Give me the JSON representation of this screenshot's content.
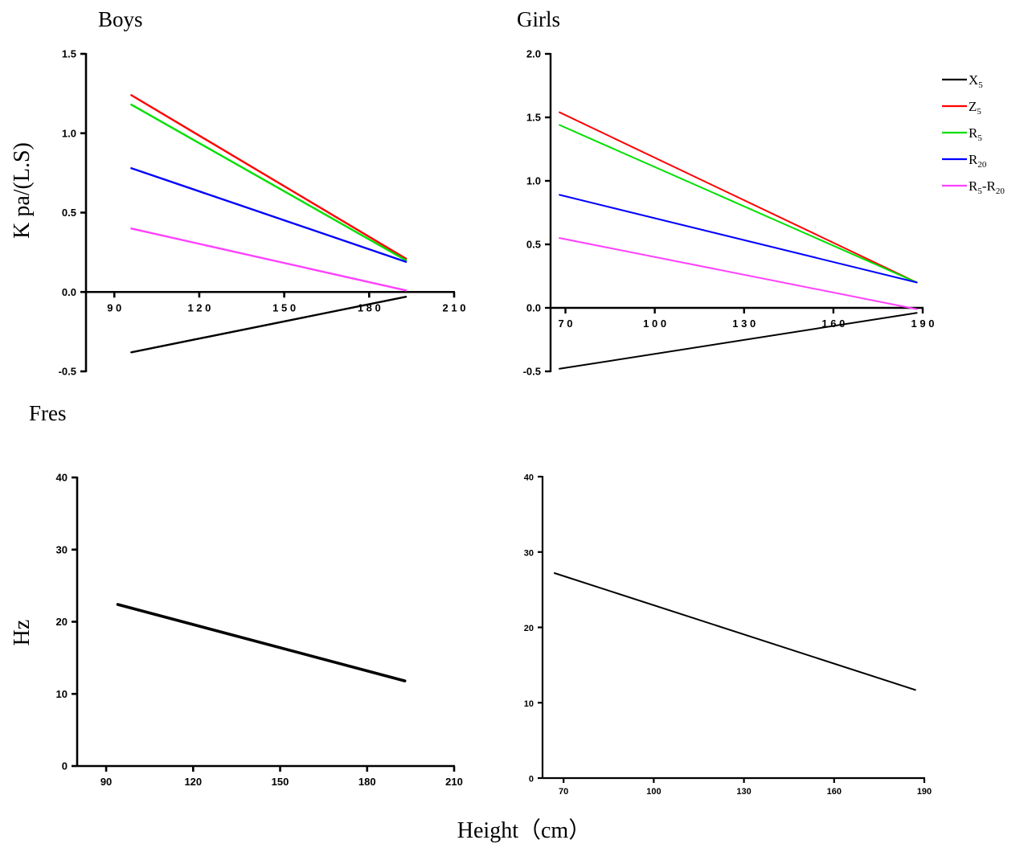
{
  "labels": {
    "boys": "Boys",
    "girls": "Girls",
    "fres": "Fres",
    "ylabel_top": "K pa/(L.S)",
    "ylabel_bottom": "Hz",
    "xlabel": "Height（cm）"
  },
  "legend": [
    {
      "base": "X",
      "sub": "5",
      "color": "#000000"
    },
    {
      "base": "Z",
      "sub": "5",
      "color": "#ff0000"
    },
    {
      "base": "R",
      "sub": "5",
      "color": "#00e000"
    },
    {
      "base": "R",
      "sub": "20",
      "color": "#0000ff"
    },
    {
      "base": "R",
      "sub": "5",
      "tail": "-R",
      "sub2": "20",
      "color": "#ff40ff"
    }
  ],
  "chart_data": [
    {
      "type": "line",
      "panel": "boys-impedance",
      "title": "Boys",
      "ylabel": "K pa/(L.S)",
      "xlim": [
        80,
        210
      ],
      "ylim": [
        -0.5,
        1.5
      ],
      "x_ticks": [
        90,
        120,
        150,
        180,
        210
      ],
      "x_tick_labels": [
        "9 0",
        "1 2 0",
        "1 5 0",
        "1 8 0",
        "2 1 0"
      ],
      "y_ticks": [
        -0.5,
        0.0,
        0.5,
        1.0,
        1.5
      ],
      "y_tick_labels": [
        "-0.5",
        "0.0",
        "0.5",
        "1.0",
        "1.5"
      ],
      "series": [
        {
          "name": "X5",
          "color": "#000000",
          "x": [
            96,
            193
          ],
          "y": [
            -0.38,
            -0.03
          ]
        },
        {
          "name": "Z5",
          "color": "#ff0000",
          "x": [
            96,
            193
          ],
          "y": [
            1.24,
            0.21
          ]
        },
        {
          "name": "R5",
          "color": "#00e000",
          "x": [
            96,
            193
          ],
          "y": [
            1.18,
            0.2
          ]
        },
        {
          "name": "R20",
          "color": "#0000ff",
          "x": [
            96,
            193
          ],
          "y": [
            0.78,
            0.19
          ]
        },
        {
          "name": "R5-R20",
          "color": "#ff40ff",
          "x": [
            96,
            193
          ],
          "y": [
            0.4,
            0.01
          ]
        }
      ]
    },
    {
      "type": "line",
      "panel": "girls-impedance",
      "title": "Girls",
      "xlim": [
        65,
        190
      ],
      "ylim": [
        -0.5,
        2.0
      ],
      "x_ticks": [
        70,
        100,
        130,
        160,
        190
      ],
      "x_tick_labels": [
        "7 0",
        "1 0 0",
        "1 3 0",
        "1 6 0",
        "1 9 0"
      ],
      "y_ticks": [
        -0.5,
        0.0,
        0.5,
        1.0,
        1.5,
        2.0
      ],
      "y_tick_labels": [
        "-0.5",
        "0.0",
        "0.5",
        "1.0",
        "1.5",
        "2.0"
      ],
      "series": [
        {
          "name": "X5",
          "color": "#000000",
          "x": [
            68,
            188
          ],
          "y": [
            -0.48,
            -0.04
          ]
        },
        {
          "name": "Z5",
          "color": "#ff0000",
          "x": [
            68,
            188
          ],
          "y": [
            1.54,
            0.2
          ]
        },
        {
          "name": "R5",
          "color": "#00e000",
          "x": [
            68,
            188
          ],
          "y": [
            1.44,
            0.2
          ]
        },
        {
          "name": "R20",
          "color": "#0000ff",
          "x": [
            68,
            188
          ],
          "y": [
            0.89,
            0.2
          ]
        },
        {
          "name": "R5-R20",
          "color": "#ff40ff",
          "x": [
            68,
            188
          ],
          "y": [
            0.55,
            -0.01
          ]
        }
      ]
    },
    {
      "type": "line",
      "panel": "boys-fres",
      "title": "Fres",
      "ylabel": "Hz",
      "xlabel": "Height（cm）",
      "xlim": [
        80,
        210
      ],
      "ylim": [
        0,
        40
      ],
      "x_ticks": [
        90,
        120,
        150,
        180,
        210
      ],
      "x_tick_labels": [
        "90",
        "120",
        "150",
        "180",
        "210"
      ],
      "y_ticks": [
        0,
        10,
        20,
        30,
        40
      ],
      "y_tick_labels": [
        "0",
        "10",
        "20",
        "30",
        "40"
      ],
      "series": [
        {
          "name": "Fres",
          "color": "#000000",
          "x": [
            94,
            193
          ],
          "y": [
            22.4,
            11.8
          ]
        }
      ]
    },
    {
      "type": "line",
      "panel": "girls-fres",
      "xlim": [
        63,
        190
      ],
      "ylim": [
        0,
        40
      ],
      "x_ticks": [
        70,
        100,
        130,
        160,
        190
      ],
      "x_tick_labels": [
        "70",
        "100",
        "130",
        "160",
        "190"
      ],
      "y_ticks": [
        0,
        10,
        20,
        30,
        40
      ],
      "y_tick_labels": [
        "0",
        "10",
        "20",
        "30",
        "40"
      ],
      "series": [
        {
          "name": "Fres",
          "color": "#000000",
          "x": [
            67,
            187
          ],
          "y": [
            27.2,
            11.7
          ]
        }
      ]
    }
  ]
}
